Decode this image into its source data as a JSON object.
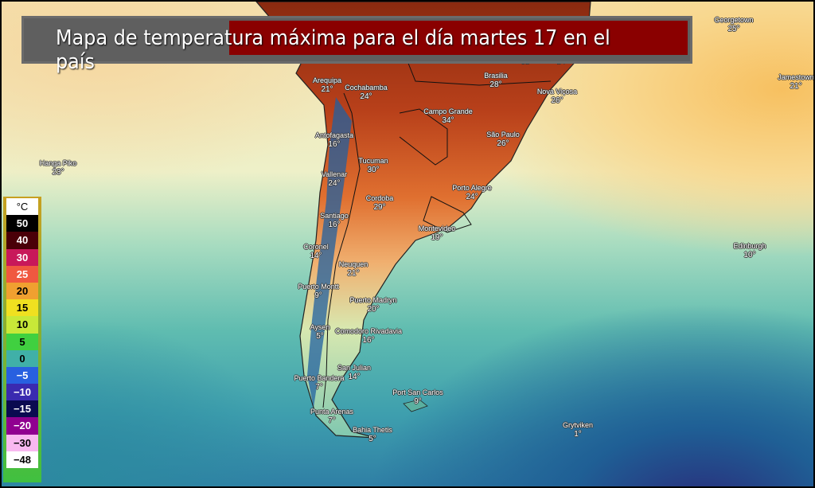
{
  "title": "Mapa de temperatura máxima para el día martes 17 en el país",
  "legend": {
    "unit": "°C",
    "items": [
      {
        "label": "50",
        "color": "#000000",
        "text": "#ffffff"
      },
      {
        "label": "40",
        "color": "#4a0008",
        "text": "#ffffff"
      },
      {
        "label": "30",
        "color": "#c8185a",
        "text": "#ffffff"
      },
      {
        "label": "25",
        "color": "#f05840",
        "text": "#ffffff"
      },
      {
        "label": "20",
        "color": "#f0a030",
        "text": "#000000"
      },
      {
        "label": "15",
        "color": "#f0e020",
        "text": "#000000"
      },
      {
        "label": "10",
        "color": "#c8e838",
        "text": "#000000"
      },
      {
        "label": "5",
        "color": "#40d040",
        "text": "#000000"
      },
      {
        "label": "0",
        "color": "#40b0a8",
        "text": "#000000"
      },
      {
        "label": "−5",
        "color": "#2860e0",
        "text": "#ffffff"
      },
      {
        "label": "−10",
        "color": "#3a2ab0",
        "text": "#ffffff"
      },
      {
        "label": "−15",
        "color": "#0a0a50",
        "text": "#ffffff"
      },
      {
        "label": "−20",
        "color": "#900090",
        "text": "#ffffff"
      },
      {
        "label": "−30",
        "color": "#f8b8f0",
        "text": "#000000"
      },
      {
        "label": "−48",
        "color": "#ffffff",
        "text": "#000000"
      }
    ]
  },
  "cities": [
    {
      "name": "Georgetown",
      "temp": "25°"
    },
    {
      "name": "Jamestown",
      "temp": "21°"
    },
    {
      "name": "Arequipa",
      "temp": "21°"
    },
    {
      "name": "Cochabamba",
      "temp": "24°"
    },
    {
      "name": "Brasilia",
      "temp": "28°"
    },
    {
      "name": "Nova Viçosa",
      "temp": "26°"
    },
    {
      "name": "",
      "temp": "32°"
    },
    {
      "name": "",
      "temp": "24°"
    },
    {
      "name": "Campo Grande",
      "temp": "34°"
    },
    {
      "name": "Antofagasta",
      "temp": "16°"
    },
    {
      "name": "São Paulo",
      "temp": "26°"
    },
    {
      "name": "Hanga Piko",
      "temp": "23°"
    },
    {
      "name": "Tucuman",
      "temp": "30°"
    },
    {
      "name": "Vallenar",
      "temp": "24°"
    },
    {
      "name": "Porto Alegre",
      "temp": "24°"
    },
    {
      "name": "Cordoba",
      "temp": "29°"
    },
    {
      "name": "Santiago",
      "temp": "16°"
    },
    {
      "name": "Montevideo",
      "temp": "19°"
    },
    {
      "name": "Coronel",
      "temp": "14°"
    },
    {
      "name": "Edinburgh",
      "temp": "10°"
    },
    {
      "name": "Neuquen",
      "temp": "21°"
    },
    {
      "name": "Puerto Montt",
      "temp": "9°"
    },
    {
      "name": "Puerto Madryn",
      "temp": "20°"
    },
    {
      "name": "Aysen",
      "temp": "5°"
    },
    {
      "name": "Comodoro Rivadavia",
      "temp": "16°"
    },
    {
      "name": "San Julian",
      "temp": "14°"
    },
    {
      "name": "Puerto Bandera",
      "temp": "7°"
    },
    {
      "name": "Port San Carlos",
      "temp": "9°"
    },
    {
      "name": "Punta Arenas",
      "temp": "7°"
    },
    {
      "name": "Bahia Thetis",
      "temp": "5°"
    },
    {
      "name": "Grytviken",
      "temp": "1°"
    }
  ]
}
